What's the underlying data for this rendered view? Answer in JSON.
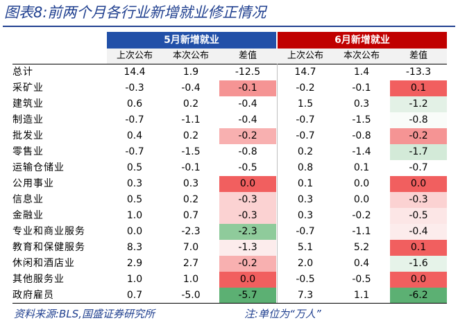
{
  "title": "图表8:前两个月各行业新增就业修正情况",
  "groups": {
    "may": "5月新增就业",
    "jun": "6月新增就业"
  },
  "subheaders": [
    "上次公布",
    "本次公布",
    "差值",
    "上次公布",
    "本次公布",
    "差值"
  ],
  "rows": [
    {
      "label": "总计",
      "may": [
        "14.4",
        "1.9",
        "-12.5"
      ],
      "jun": [
        "14.7",
        "1.4",
        "-13.3"
      ]
    },
    {
      "label": "采矿业",
      "may": [
        "-0.3",
        "-0.4",
        "-0.1"
      ],
      "jun": [
        "-0.2",
        "-0.1",
        "0.1"
      ]
    },
    {
      "label": "建筑业",
      "may": [
        "0.6",
        "0.2",
        "-0.4"
      ],
      "jun": [
        "1.5",
        "0.3",
        "-1.2"
      ]
    },
    {
      "label": "制造业",
      "may": [
        "-0.7",
        "-1.1",
        "-0.4"
      ],
      "jun": [
        "-0.7",
        "-1.5",
        "-0.8"
      ]
    },
    {
      "label": "批发业",
      "may": [
        "0.4",
        "0.2",
        "-0.2"
      ],
      "jun": [
        "-0.7",
        "-0.8",
        "-0.2"
      ]
    },
    {
      "label": "零售业",
      "may": [
        "-0.7",
        "-1.5",
        "-0.8"
      ],
      "jun": [
        "0.2",
        "-1.4",
        "-1.7"
      ]
    },
    {
      "label": "运输仓储业",
      "may": [
        "0.5",
        "-0.1",
        "-0.5"
      ],
      "jun": [
        "0.8",
        "0.1",
        "-0.7"
      ]
    },
    {
      "label": "公用事业",
      "may": [
        "0.3",
        "0.3",
        "0.0"
      ],
      "jun": [
        "0.1",
        "0.0",
        "0.0"
      ]
    },
    {
      "label": "信息业",
      "may": [
        "0.5",
        "0.2",
        "-0.3"
      ],
      "jun": [
        "0.3",
        "0.0",
        "-0.3"
      ]
    },
    {
      "label": "金融业",
      "may": [
        "1.0",
        "0.7",
        "-0.3"
      ],
      "jun": [
        "0.3",
        "-0.2",
        "-0.5"
      ]
    },
    {
      "label": "专业和商业服务",
      "may": [
        "0.0",
        "-2.3",
        "-2.3"
      ],
      "jun": [
        "-0.7",
        "-1.1",
        "-0.4"
      ]
    },
    {
      "label": "教育和保健服务",
      "may": [
        "8.3",
        "7.0",
        "-1.3"
      ],
      "jun": [
        "5.1",
        "5.2",
        "0.1"
      ]
    },
    {
      "label": "休闲和酒店业",
      "may": [
        "2.9",
        "2.7",
        "-0.2"
      ],
      "jun": [
        "2.0",
        "0.4",
        "-1.6"
      ]
    },
    {
      "label": "其他服务业",
      "may": [
        "1.0",
        "1.0",
        "0.0"
      ],
      "jun": [
        "-0.5",
        "-0.5",
        "0.0"
      ]
    },
    {
      "label": "政府雇员",
      "may": [
        "0.7",
        "-5.0",
        "-5.7"
      ],
      "jun": [
        "7.3",
        "1.1",
        "-6.2"
      ]
    }
  ],
  "diff_colors": {
    "may": [
      "#ffffff",
      "#f59494",
      "#ffffff",
      "#ffffff",
      "#f8b0b0",
      "#ffffff",
      "#ffffff",
      "#f15f5f",
      "#fbd2d2",
      "#fbd2d2",
      "#8fcb9b",
      "#fcecec",
      "#f8b0b0",
      "#f15f5f",
      "#5cb073"
    ],
    "jun": [
      "#ffffff",
      "#f15f5f",
      "#e3f1e6",
      "#f9fcf9",
      "#f59494",
      "#d3ead8",
      "#ffffff",
      "#f15f5f",
      "#fbd2d2",
      "#fce6e6",
      "#fcecec",
      "#f15f5f",
      "#e6f3e9",
      "#f15f5f",
      "#5cb073"
    ]
  },
  "footer": "资料来源:BLS,国盛证券研究所",
  "note": "注:单位为“万人”"
}
